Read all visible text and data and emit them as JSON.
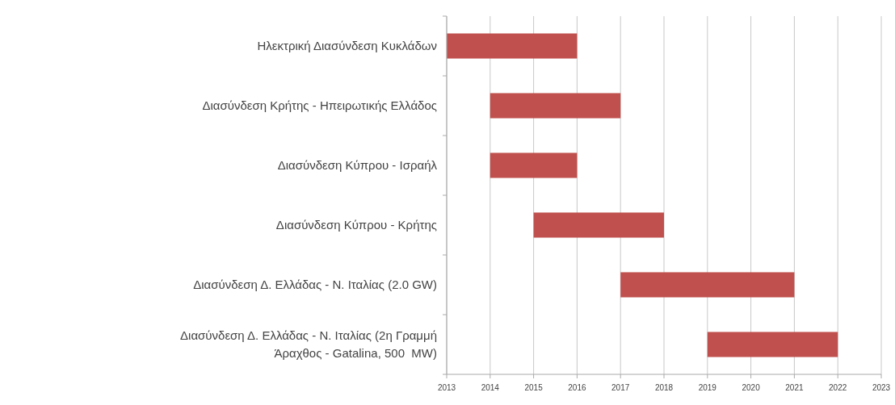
{
  "chart_data": {
    "type": "bar",
    "orientation": "horizontal",
    "categories": [
      "Ηλεκτρική Διασύνδεση Κυκλάδων",
      "Διασύνδεση Κρήτης - Ηπειρωτικής Ελλάδος",
      "Διασύνδεση Κύπρου - Ισραήλ",
      "Διασύνδεση Κύπρου - Κρήτης",
      "Διασύνδεση Δ. Ελλάδας - Ν. Ιταλίας (2.0 GW)",
      "Διασύνδεση Δ. Ελλάδας - Ν. Ιταλίας (2η Γραμμή\nΆραχθος - Gatalina, 500  MW)"
    ],
    "base": [
      2013,
      2014,
      2014,
      2015,
      2017,
      2019
    ],
    "values": [
      3,
      3,
      2,
      3,
      4,
      3
    ],
    "color": "#c0504d",
    "xlim": [
      2013,
      2023
    ],
    "xticks": [
      2013,
      2014,
      2015,
      2016,
      2017,
      2018,
      2019,
      2020,
      2021,
      2022,
      2023
    ],
    "grid": "x"
  }
}
